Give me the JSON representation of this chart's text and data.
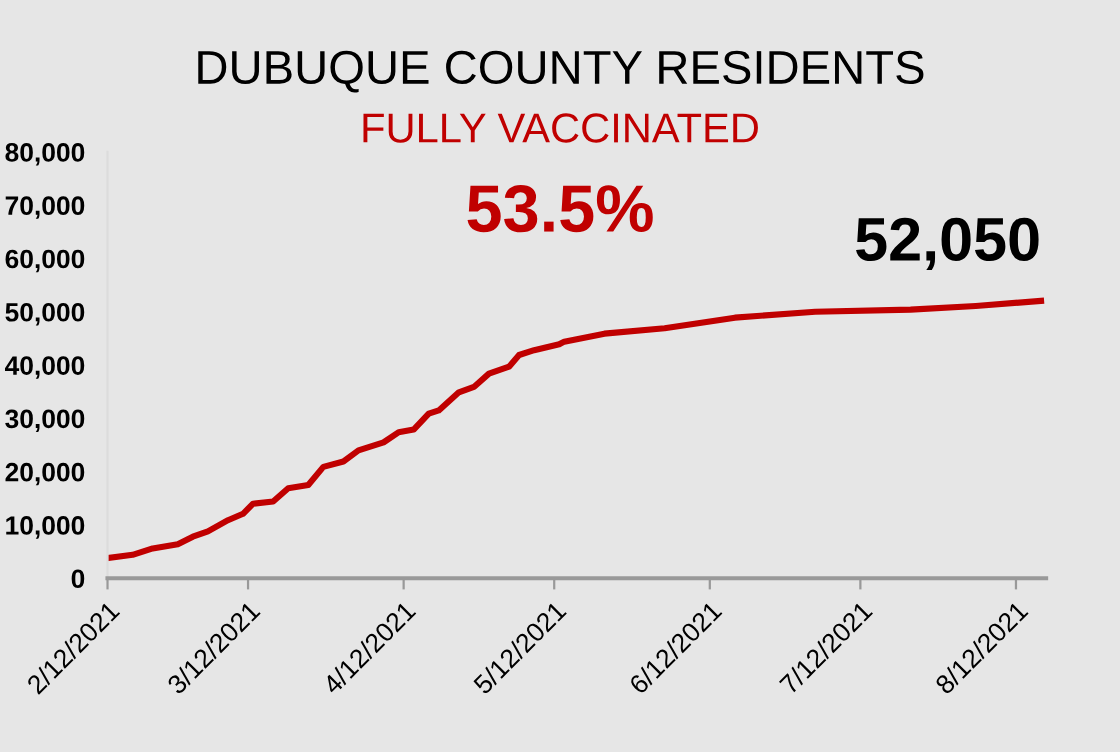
{
  "chart_data": {
    "type": "line",
    "title": "DUBUQUE COUNTY RESIDENTS",
    "subtitle": "FULLY VACCINATED",
    "annotations": [
      "53.5%",
      {
        "text": "52,050",
        "x": "2021-08-17",
        "y": 52050
      }
    ],
    "x": [
      "2021-02-12",
      "2021-02-17",
      "2021-02-21",
      "2021-02-26",
      "2021-03-01",
      "2021-03-04",
      "2021-03-08",
      "2021-03-11",
      "2021-03-13",
      "2021-03-17",
      "2021-03-20",
      "2021-03-24",
      "2021-03-27",
      "2021-03-31",
      "2021-04-03",
      "2021-04-08",
      "2021-04-11",
      "2021-04-14",
      "2021-04-17",
      "2021-04-19",
      "2021-04-23",
      "2021-04-26",
      "2021-04-29",
      "2021-05-03",
      "2021-05-05",
      "2021-05-08",
      "2021-05-13",
      "2021-05-14",
      "2021-05-22",
      "2021-06-03",
      "2021-06-17",
      "2021-07-03",
      "2021-07-22",
      "2021-08-04",
      "2021-08-17"
    ],
    "series": [
      {
        "color": "#c00000",
        "values": [
          3800,
          4400,
          5600,
          6400,
          7800,
          8800,
          10900,
          12100,
          14000,
          14400,
          16900,
          17500,
          20900,
          21900,
          24000,
          25500,
          27400,
          27900,
          30900,
          31500,
          34900,
          35900,
          38400,
          39700,
          41900,
          42800,
          43900,
          44400,
          45900,
          46900,
          48900,
          50000,
          50400,
          51100,
          52050
        ]
      }
    ],
    "xlim": [
      "2021-02-12",
      "2021-08-18"
    ],
    "xticks": [
      {
        "value": "2021-02-12",
        "label": "2/12/2021"
      },
      {
        "value": "2021-03-12",
        "label": "3/12/2021"
      },
      {
        "value": "2021-04-12",
        "label": "4/12/2021"
      },
      {
        "value": "2021-05-12",
        "label": "5/12/2021"
      },
      {
        "value": "2021-06-12",
        "label": "6/12/2021"
      },
      {
        "value": "2021-07-12",
        "label": "7/12/2021"
      },
      {
        "value": "2021-08-12",
        "label": "8/12/2021"
      }
    ],
    "ylim": [
      0,
      80000
    ],
    "yticks": [
      0,
      {
        "value": 10000,
        "label": "10,000"
      },
      {
        "value": 20000,
        "label": "20,000"
      },
      {
        "value": 30000,
        "label": "30,000"
      },
      {
        "value": 40000,
        "label": "40,000"
      },
      {
        "value": 50000,
        "label": "50,000"
      },
      {
        "value": 60000,
        "label": "60,000"
      },
      {
        "value": 70000,
        "label": "70,000"
      },
      {
        "value": 80000,
        "label": "80,000"
      }
    ],
    "grid": false,
    "legend": false,
    "marker": "none",
    "line_style": "solid"
  }
}
